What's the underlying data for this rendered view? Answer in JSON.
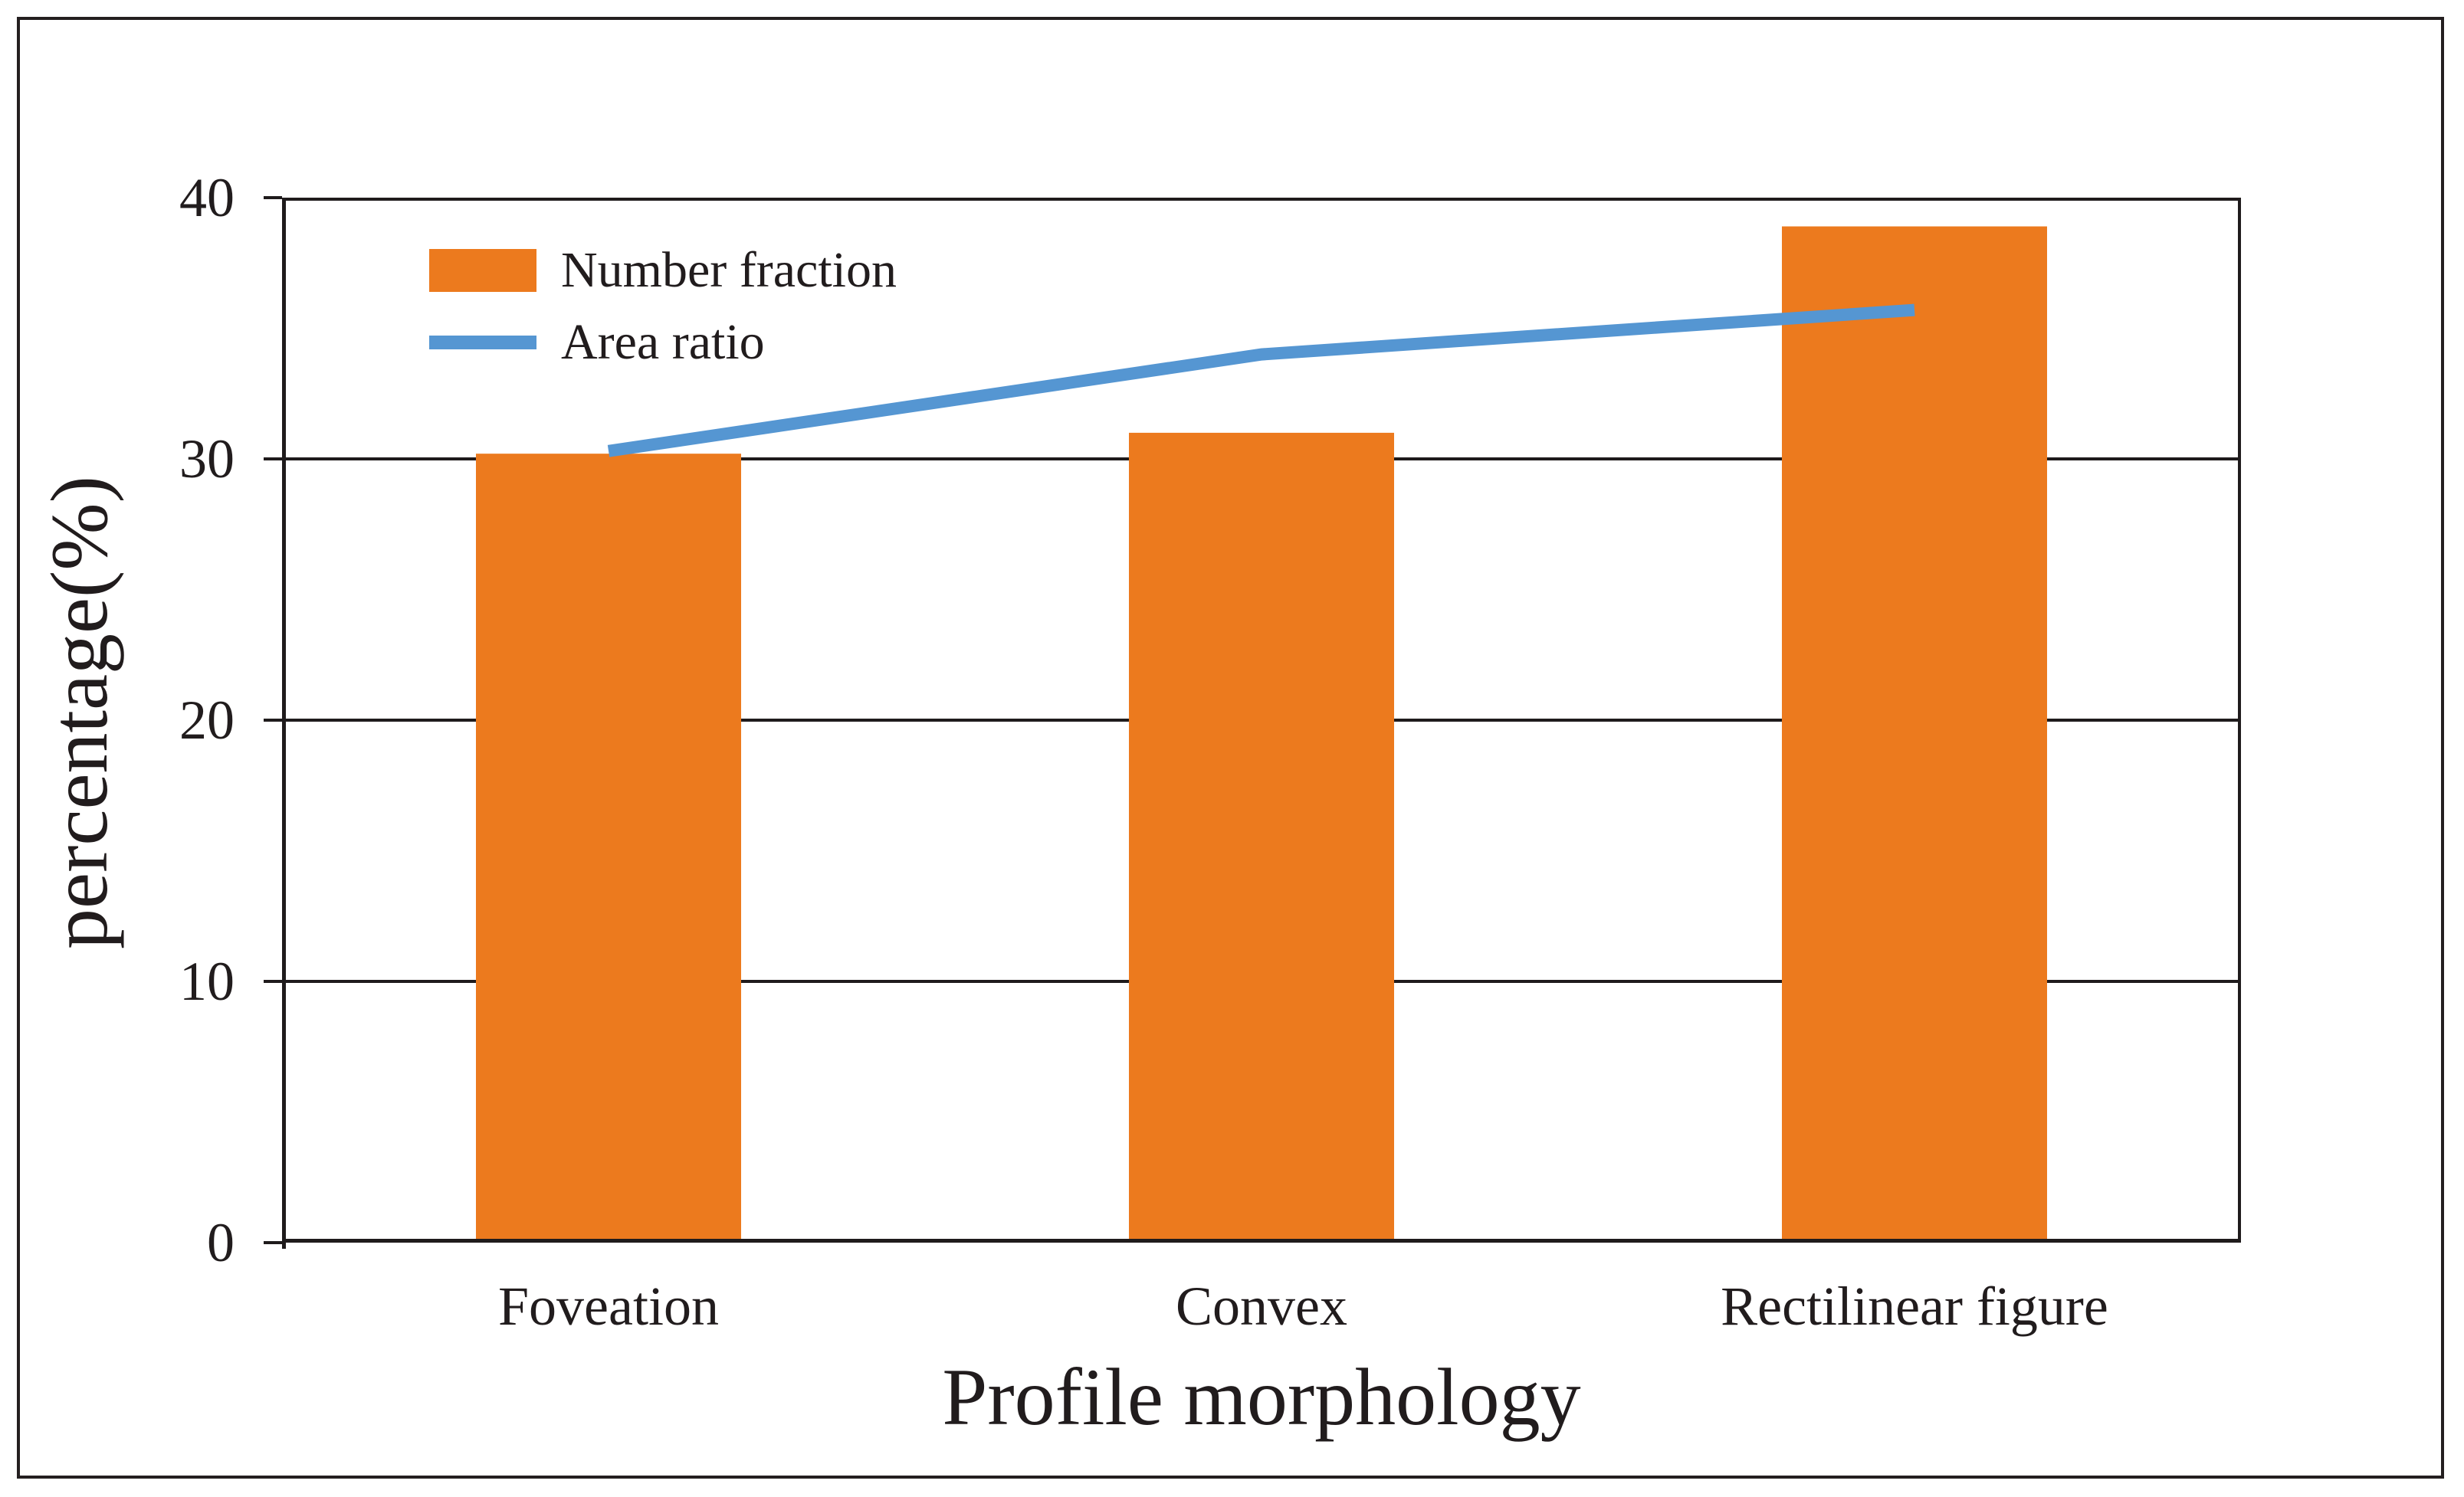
{
  "figure": {
    "background": "#ffffff",
    "frame_color": "#241f20",
    "text_color": "#211c1d",
    "axis_color": "#1f1b1c",
    "grid_color": "#1f1b1c"
  },
  "chart_data": {
    "type": "bar",
    "title": "",
    "categories": [
      "Foveation",
      "Convex",
      "Rectilinear figure"
    ],
    "series": [
      {
        "name": "Number fraction",
        "type": "bar",
        "color": "#EC7A1E",
        "values": [
          30.2,
          31.0,
          38.9
        ]
      },
      {
        "name": "Area ratio",
        "type": "line",
        "color": "#5596D2",
        "values": [
          30.3,
          34.0,
          35.7
        ]
      }
    ],
    "xlabel": "Profile morphology",
    "ylabel": "percentage(%)",
    "ylim": [
      0,
      40
    ],
    "y_ticks": [
      0,
      10,
      20,
      30,
      40
    ],
    "grid": "horizontal",
    "legend_position": "inside-top-left"
  }
}
